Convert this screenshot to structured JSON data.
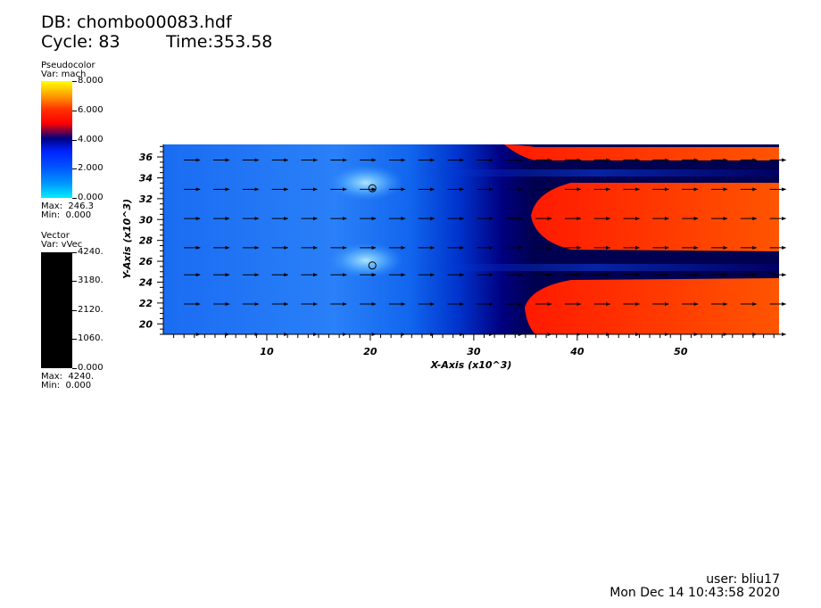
{
  "header": {
    "db": "DB: chombo00083.hdf",
    "cycle": "Cycle: 83",
    "time": "Time:353.58"
  },
  "pseudocolor_legend": {
    "title": "Pseudocolor",
    "var": "Var: mach",
    "ticks": [
      "8.000",
      "6.000",
      "4.000",
      "2.000",
      "0.000"
    ],
    "max": "Max:  246.3",
    "min": "Min:  0.000",
    "colors": [
      "#ffff00",
      "#ff3300",
      "#000080",
      "#0055ff",
      "#00eeff"
    ]
  },
  "vector_legend": {
    "title": "Vector",
    "var": "Var: vVec",
    "ticks": [
      "4240.",
      "3180.",
      "2120.",
      "1060.",
      "0.000"
    ],
    "max": "Max:  4240.",
    "min": "Min:  0.000",
    "color": "#000000"
  },
  "chart_data": {
    "type": "heatmap",
    "title": "",
    "xlabel": "X-Axis (x10^3)",
    "ylabel": "Y-Axis (x10^3)",
    "xlim": [
      0,
      59.5
    ],
    "ylim": [
      19,
      37.2
    ],
    "x_ticks": [
      10,
      20,
      30,
      40,
      50
    ],
    "y_ticks": [
      20,
      22,
      24,
      26,
      28,
      30,
      32,
      34,
      36
    ],
    "x_tick_labels": [
      "10",
      "20",
      "30",
      "40",
      "50"
    ],
    "y_tick_labels": [
      "20",
      "22",
      "24",
      "26",
      "28",
      "30",
      "32",
      "34",
      "36"
    ],
    "grid": false,
    "field": "mach",
    "color_range": [
      0,
      8
    ],
    "regions": [
      {
        "name": "ambient",
        "x_range": [
          0,
          33
        ],
        "mach": 1.8
      },
      {
        "name": "jet-upper",
        "y_center": 34.8,
        "x_start": 33,
        "mach": 6.0
      },
      {
        "name": "jet-middle",
        "y_center": 30.0,
        "x_start": 35,
        "mach": 6.2
      },
      {
        "name": "jet-lower",
        "y_center": 21.5,
        "x_start": 34,
        "mach": 6.2
      },
      {
        "name": "shear-upper",
        "y_center": 33.8,
        "mach": 3.9
      },
      {
        "name": "shear-lower",
        "y_center": 24.8,
        "mach": 3.9
      }
    ],
    "vectors": {
      "rows_y": [
        19.0,
        21.9,
        24.7,
        27.3,
        30.1,
        32.9,
        35.7
      ],
      "x_start": 2.0,
      "x_step": 2.83,
      "direction": "+x"
    },
    "circles": [
      {
        "x": 20.2,
        "y": 33.0
      },
      {
        "x": 20.2,
        "y": 25.6
      }
    ]
  },
  "footer": {
    "user": "user: bliu17",
    "datetime": "Mon Dec 14 10:43:58 2020"
  }
}
